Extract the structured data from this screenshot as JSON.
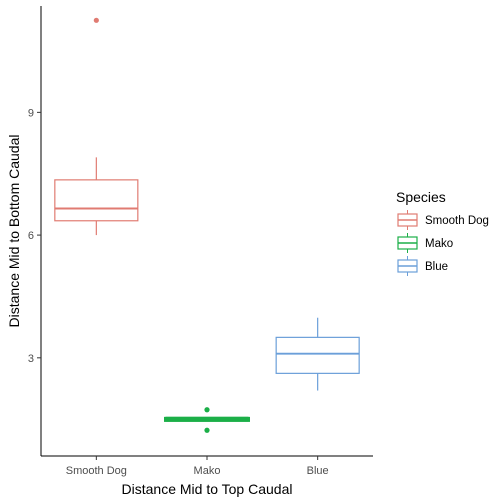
{
  "chart_data": {
    "type": "box",
    "xlabel": "Distance Mid to Top Caudal",
    "ylabel": "Distance Mid to Bottom Caudal",
    "ylim": [
      0.6,
      11.6
    ],
    "yticks": [
      3,
      6,
      9
    ],
    "categories": [
      "Smooth Dog",
      "Mako",
      "Blue"
    ],
    "legend": {
      "title": "Species",
      "position": "right"
    },
    "grid": false,
    "series": [
      {
        "name": "Smooth Dog",
        "color": "#E07B72",
        "stroke": 1.2,
        "whisker_low": 6.0,
        "q1": 6.35,
        "median": 6.65,
        "q3": 7.35,
        "whisker_high": 7.9,
        "outliers": [
          11.25
        ]
      },
      {
        "name": "Mako",
        "color": "#1BAF48",
        "stroke": 3,
        "whisker_low": 1.45,
        "q1": 1.47,
        "median": 1.5,
        "q3": 1.52,
        "whisker_high": 1.55,
        "outliers": [
          1.73,
          1.23
        ]
      },
      {
        "name": "Blue",
        "color": "#6B9FD9",
        "stroke": 1.2,
        "whisker_low": 2.2,
        "q1": 2.62,
        "median": 3.1,
        "q3": 3.5,
        "whisker_high": 3.98,
        "outliers": []
      }
    ]
  }
}
